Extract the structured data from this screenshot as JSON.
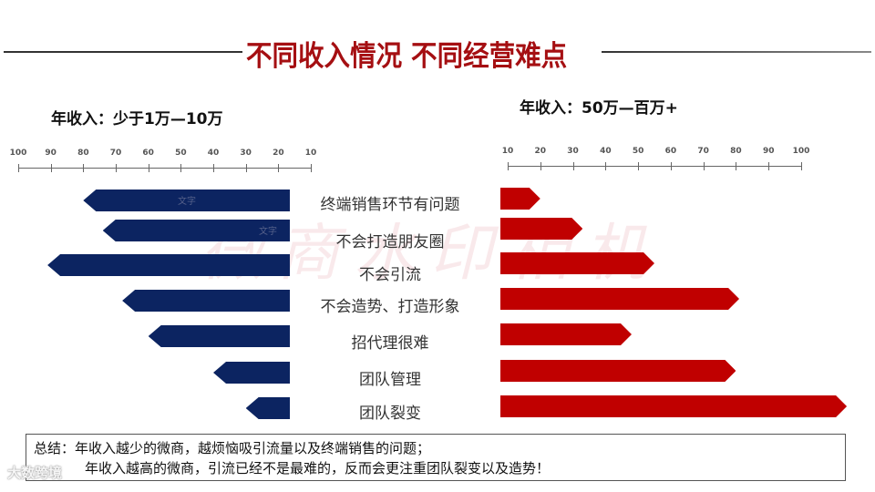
{
  "title": "不同收入情况 不同经营难点",
  "watermark": "微商水印相机",
  "brand_watermark": "大数跨境",
  "left_panel": {
    "subtitle": "年收入：少于1万—10万",
    "bar_color": "#0c2461",
    "bar_placeholder_text": [
      "文字",
      "文字"
    ]
  },
  "right_panel": {
    "subtitle": "年收入：50万—百万+",
    "bar_color": "#c00000"
  },
  "summary": {
    "line1": "总结：年收入越少的微商，越烦恼吸引流量以及终端销售的问题；",
    "line2": "年收入越高的微商，引流已经不是最难的，反而会更注重团队裂变以及造势！"
  },
  "chart_data": [
    {
      "type": "bar",
      "orientation": "horizontal",
      "direction": "right-to-left",
      "title": "年收入：少于1万—10万",
      "xlabel": "",
      "ylabel": "",
      "x_ticks": [
        100,
        90,
        80,
        70,
        60,
        50,
        40,
        30,
        20,
        10
      ],
      "xlim": [
        100,
        10
      ],
      "grid": false,
      "categories": [
        "终端销售环节有问题",
        "不会打造朋友圈",
        "不会引流",
        "不会造势、打造形象",
        "招代理很难",
        "团队管理",
        "团队裂变"
      ],
      "values": [
        80,
        74,
        91,
        68,
        60,
        40,
        30
      ],
      "color": "#0c2461"
    },
    {
      "type": "bar",
      "orientation": "horizontal",
      "direction": "left-to-right",
      "title": "年收入：50万—百万+",
      "xlabel": "",
      "ylabel": "",
      "x_ticks": [
        10,
        20,
        30,
        40,
        50,
        60,
        70,
        80,
        90,
        100
      ],
      "xlim": [
        10,
        100
      ],
      "grid": false,
      "categories": [
        "终端销售环节有问题",
        "不会打造朋友圈",
        "不会引流",
        "不会造势、打造形象",
        "招代理很难",
        "团队管理",
        "团队裂变"
      ],
      "values": [
        20,
        33,
        55,
        81,
        48,
        80,
        114
      ],
      "color": "#c00000"
    }
  ]
}
